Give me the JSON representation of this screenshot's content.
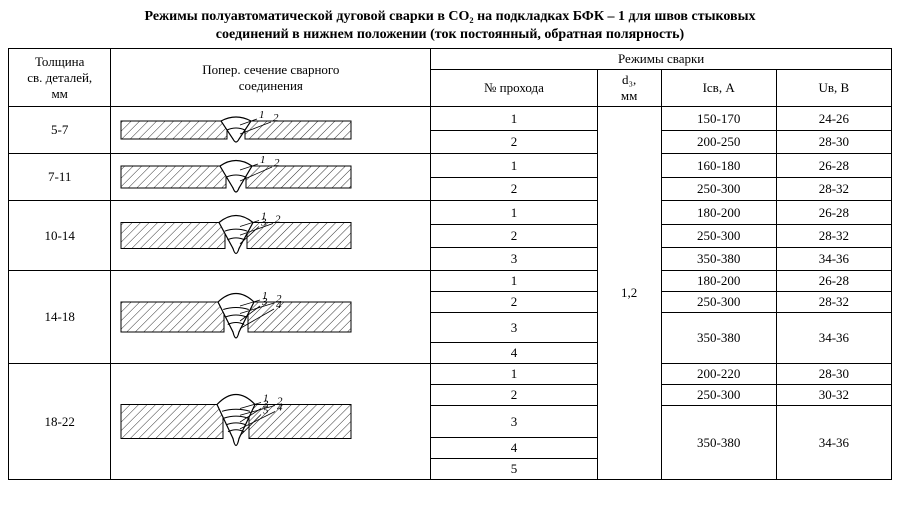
{
  "title_line1": "Режимы полуавтоматической дуговой сварки в CO₂ на подкладках БФК – 1 для швов стыковых",
  "title_line2": "соединений в нижнем положении  (ток постоянный, обратная полярность)",
  "headers": {
    "thickness_l1": "Толщина",
    "thickness_l2": "св. деталей,",
    "thickness_l3": "мм",
    "cross_section_l1": "Попер. сечение сварного",
    "cross_section_l2": "соединения",
    "modes": "Режимы сварки",
    "pass_no": "№ прохода",
    "d_l1": "d₃,",
    "d_l2": "мм",
    "i": "Iсв, А",
    "u": "Uв, В"
  },
  "d_value": "1,2",
  "rows": [
    {
      "thickness": "5-7",
      "passes": [
        {
          "n": "1",
          "i": "150-170",
          "u": "24-26"
        },
        {
          "n": "2",
          "i": "200-250",
          "u": "28-30"
        }
      ]
    },
    {
      "thickness": "7-11",
      "passes": [
        {
          "n": "1",
          "i": "160-180",
          "u": "26-28"
        },
        {
          "n": "2",
          "i": "250-300",
          "u": "28-32"
        }
      ]
    },
    {
      "thickness": "10-14",
      "passes": [
        {
          "n": "1",
          "i": "180-200",
          "u": "26-28"
        },
        {
          "n": "2",
          "i": "250-300",
          "u": "28-32"
        },
        {
          "n": "3",
          "i": "350-380",
          "u": "34-36"
        }
      ]
    },
    {
      "thickness": "14-18",
      "passes": [
        {
          "n": "1",
          "i": "180-200",
          "u": "26-28"
        },
        {
          "n": "2",
          "i": "250-300",
          "u": "28-32"
        },
        {
          "n": "3",
          "i": "350-380",
          "u": "34-36",
          "span": 2
        },
        {
          "n": "4"
        }
      ]
    },
    {
      "thickness": "18-22",
      "passes": [
        {
          "n": "1",
          "i": "200-220",
          "u": "28-30"
        },
        {
          "n": "2",
          "i": "250-300",
          "u": "30-32"
        },
        {
          "n": "3",
          "i": "350-380",
          "u": "34-36",
          "span": 3
        },
        {
          "n": "4"
        },
        {
          "n": "5"
        }
      ]
    }
  ],
  "svg": {
    "hatch_stroke": "#000",
    "outline_stroke": "#000"
  }
}
